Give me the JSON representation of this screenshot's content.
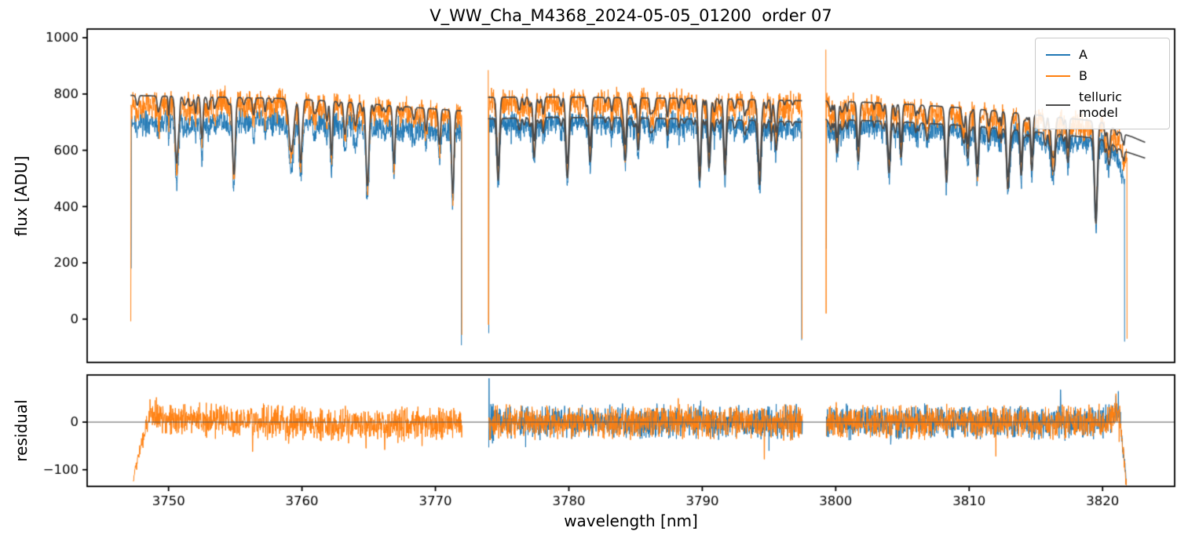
{
  "chart_data": {
    "type": "line",
    "title": "V_WW_Cha_M4368_2024-05-05_01200  order 07",
    "xlabel": "wavelength [nm]",
    "ylabel_top": "flux [ADU]",
    "ylabel_bottom": "residual",
    "xlim": [
      3743.9,
      3825.4
    ],
    "ylim_top": [
      -154,
      1031
    ],
    "ylim_bottom": [
      -135,
      99
    ],
    "xticks": [
      3750,
      3760,
      3770,
      3780,
      3790,
      3800,
      3810,
      3820
    ],
    "yticks_top": [
      0,
      200,
      400,
      600,
      800,
      1000
    ],
    "yticks_bottom": [
      -100,
      0
    ],
    "grid": false,
    "legend_position": "upper right",
    "legend": [
      {
        "label": "A",
        "color": "#1f77b4"
      },
      {
        "label": "B",
        "color": "#ff7f0e"
      },
      {
        "label": "telluric model",
        "color": "#4a4a4a"
      }
    ],
    "zero_line_color": "#555555",
    "data_line_width": 1.0,
    "model_line_width": 1.7,
    "noise": {
      "A": 52,
      "B": 60,
      "residual": 40,
      "spike_prob": 0.008,
      "texture_lines_per_segment": 45
    },
    "segments": [
      {
        "name": "order-chunk-1",
        "range": [
          3747.15,
          3772.0
        ],
        "residual_range": [
          3747.35,
          3772.0
        ],
        "contA": [
          [
            3747.2,
            700
          ],
          [
            3750,
            710
          ],
          [
            3753,
            714
          ],
          [
            3757,
            712
          ],
          [
            3760,
            707
          ],
          [
            3764,
            698
          ],
          [
            3768,
            686
          ],
          [
            3772,
            677
          ]
        ],
        "contB": [
          [
            3747.2,
            765
          ],
          [
            3750,
            772
          ],
          [
            3753,
            776
          ],
          [
            3757,
            774
          ],
          [
            3760,
            768
          ],
          [
            3764,
            757
          ],
          [
            3768,
            742
          ],
          [
            3772,
            730
          ]
        ],
        "modelB": [
          [
            3747.2,
            795
          ],
          [
            3750,
            792
          ],
          [
            3754,
            789
          ],
          [
            3758,
            785
          ],
          [
            3761,
            778
          ],
          [
            3764,
            769
          ],
          [
            3768,
            754
          ],
          [
            3772,
            740
          ]
        ],
        "modelA": null,
        "telluric_lines": [
          [
            3750.6,
            0.3,
            0.1
          ],
          [
            3752.5,
            0.19,
            0.08
          ],
          [
            3754.9,
            0.35,
            0.1
          ],
          [
            3759.2,
            0.24,
            0.18
          ],
          [
            3759.9,
            0.29,
            0.1
          ],
          [
            3762.2,
            0.18,
            0.08
          ],
          [
            3764.9,
            0.33,
            0.1
          ],
          [
            3766.9,
            0.22,
            0.09
          ],
          [
            3769.3,
            0.11,
            0.07
          ],
          [
            3770.3,
            0.17,
            0.08
          ],
          [
            3771.3,
            0.4,
            0.09
          ]
        ],
        "edges": {
          "B_start_spike": null,
          "B_start": [
            3747.17,
            -8
          ],
          "A_start": [
            3747.2,
            180
          ],
          "B_end": [
            3771.98,
            -56
          ],
          "A_end": [
            3771.95,
            -93
          ]
        },
        "residual_series": [
          "B"
        ],
        "residual_base": [
          [
            3747.35,
            -118
          ],
          [
            3748.0,
            -45
          ],
          [
            3748.6,
            18
          ],
          [
            3749.5,
            12
          ],
          [
            3751,
            4
          ],
          [
            3755,
            2
          ],
          [
            3760,
            -2
          ],
          [
            3764,
            -6
          ],
          [
            3768,
            -5
          ],
          [
            3772,
            0
          ]
        ],
        "residual_spikes": [
          [
            "B",
            3756.3,
            -62
          ],
          [
            "B",
            3759.0,
            -45
          ],
          [
            "B",
            3764.8,
            -55
          ],
          [
            "B",
            3766.2,
            -58
          ],
          [
            "B",
            3769.0,
            -50
          ]
        ]
      },
      {
        "name": "order-chunk-2",
        "range": [
          3773.95,
          3797.5
        ],
        "residual_range": [
          3774.0,
          3797.5
        ],
        "contA": [
          [
            3774,
            700
          ],
          [
            3778,
            706
          ],
          [
            3782,
            705
          ],
          [
            3786,
            703
          ],
          [
            3790,
            700
          ],
          [
            3794,
            694
          ],
          [
            3797.5,
            688
          ]
        ],
        "contB": [
          [
            3774,
            772
          ],
          [
            3777,
            777
          ],
          [
            3781,
            776
          ],
          [
            3785,
            773
          ],
          [
            3789,
            772
          ],
          [
            3793,
            768
          ],
          [
            3797.5,
            763
          ]
        ],
        "modelB": [
          [
            3774,
            788
          ],
          [
            3778,
            790
          ],
          [
            3782,
            788
          ],
          [
            3786,
            786
          ],
          [
            3790,
            784
          ],
          [
            3794,
            780
          ],
          [
            3797.5,
            776
          ]
        ],
        "modelA": [
          [
            3774,
            712
          ],
          [
            3778,
            717
          ],
          [
            3782,
            716
          ],
          [
            3786,
            714
          ],
          [
            3790,
            711
          ],
          [
            3794,
            706
          ],
          [
            3797.5,
            700
          ]
        ],
        "telluric_lines": [
          [
            3774.7,
            0.31,
            0.1
          ],
          [
            3777.4,
            0.2,
            0.09
          ],
          [
            3779.9,
            0.29,
            0.1
          ],
          [
            3781.6,
            0.19,
            0.09
          ],
          [
            3784.2,
            0.16,
            0.09
          ],
          [
            3785.2,
            0.16,
            0.08
          ],
          [
            3789.8,
            0.31,
            0.1
          ],
          [
            3790.5,
            0.24,
            0.08
          ],
          [
            3791.7,
            0.28,
            0.09
          ],
          [
            3794.3,
            0.32,
            0.1
          ]
        ],
        "edges": {
          "B_start_spike": [
            3773.96,
            885
          ],
          "B_start": [
            3773.98,
            -20
          ],
          "A_start": [
            3774.0,
            -50
          ],
          "B_end": [
            3797.48,
            -70
          ],
          "A_end": [
            3797.45,
            -75
          ]
        },
        "residual_series": [
          "A",
          "B"
        ],
        "residual_base": [
          [
            3774,
            0
          ],
          [
            3797.5,
            0
          ]
        ],
        "residual_spikes": [
          [
            "A",
            3774.02,
            92
          ],
          [
            "B",
            3788.2,
            50
          ],
          [
            "B",
            3794.65,
            -78
          ],
          [
            "A",
            3795.0,
            -60
          ]
        ]
      },
      {
        "name": "order-chunk-3",
        "range": [
          3799.25,
          3821.85
        ],
        "residual_range": [
          3799.3,
          3821.78
        ],
        "contA": [
          [
            3799.3,
            698
          ],
          [
            3802,
            694
          ],
          [
            3806,
            686
          ],
          [
            3810,
            674
          ],
          [
            3814,
            658
          ],
          [
            3817,
            644
          ],
          [
            3819,
            634
          ],
          [
            3820,
            624
          ],
          [
            3821,
            590
          ],
          [
            3821.6,
            520
          ]
        ],
        "contB": [
          [
            3799.3,
            760
          ],
          [
            3802,
            755
          ],
          [
            3806,
            746
          ],
          [
            3810,
            733
          ],
          [
            3814,
            716
          ],
          [
            3817,
            702
          ],
          [
            3819,
            692
          ],
          [
            3820,
            684
          ],
          [
            3821,
            655
          ],
          [
            3821.5,
            600
          ],
          [
            3821.85,
            548
          ]
        ],
        "modelB": [
          [
            3799.3,
            776
          ],
          [
            3802,
            771
          ],
          [
            3806,
            762
          ],
          [
            3810,
            749
          ],
          [
            3814,
            731
          ],
          [
            3817,
            716
          ],
          [
            3819,
            706
          ],
          [
            3820,
            698
          ],
          [
            3820.8,
            678
          ],
          [
            3821.4,
            660
          ],
          [
            3822.2,
            648
          ],
          [
            3823.2,
            628
          ]
        ],
        "modelA": [
          [
            3799.3,
            710
          ],
          [
            3802,
            706
          ],
          [
            3806,
            698
          ],
          [
            3810,
            687
          ],
          [
            3814,
            670
          ],
          [
            3817,
            655
          ],
          [
            3819,
            645
          ],
          [
            3820,
            637
          ],
          [
            3820.8,
            618
          ],
          [
            3821.4,
            600
          ],
          [
            3822.2,
            588
          ],
          [
            3823.2,
            572
          ]
        ],
        "telluric_lines": [
          [
            3800.1,
            0.17,
            0.09
          ],
          [
            3801.7,
            0.15,
            0.08
          ],
          [
            3804.0,
            0.26,
            0.1
          ],
          [
            3804.9,
            0.18,
            0.08
          ],
          [
            3808.3,
            0.3,
            0.1
          ],
          [
            3809.9,
            0.17,
            0.08
          ],
          [
            3810.6,
            0.16,
            0.08
          ],
          [
            3812.9,
            0.31,
            0.1
          ],
          [
            3813.9,
            0.24,
            0.09
          ],
          [
            3814.7,
            0.21,
            0.08
          ],
          [
            3816.2,
            0.16,
            0.08
          ],
          [
            3817.4,
            0.15,
            0.08
          ],
          [
            3819.5,
            0.47,
            0.11
          ],
          [
            3820.5,
            0.1,
            0.08
          ]
        ],
        "edges": {
          "B_start_spike": [
            3799.26,
            958
          ],
          "B_start": [
            3799.28,
            20
          ],
          "A_start": [
            3799.3,
            250
          ],
          "B_end": [
            3821.83,
            -70
          ],
          "A_end": [
            3821.65,
            -80
          ]
        },
        "residual_series": [
          "A",
          "B"
        ],
        "residual_base": [
          [
            3799.3,
            0
          ],
          [
            3820.3,
            0
          ],
          [
            3821.2,
            30
          ],
          [
            3821.75,
            -120
          ]
        ],
        "residual_spikes": [
          [
            "B",
            3812.0,
            -72
          ],
          [
            "A",
            3816.85,
            68
          ]
        ]
      }
    ]
  }
}
